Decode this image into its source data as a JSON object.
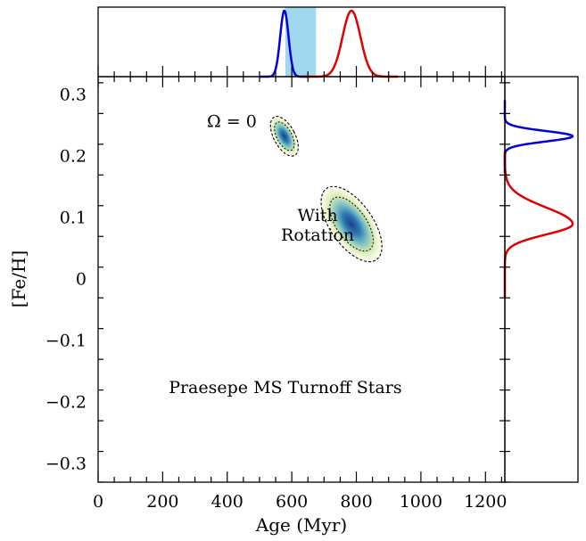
{
  "chart_data": {
    "type": "scatter",
    "title": "",
    "xlabel": "Age (Myr)",
    "ylabel": "[Fe/H]",
    "xlim": [
      0,
      1260
    ],
    "ylim": [
      -0.33,
      0.33
    ],
    "x_ticks": [
      0,
      200,
      400,
      600,
      800,
      1000,
      1200
    ],
    "y_ticks": [
      -0.3,
      -0.2,
      -0.1,
      0,
      0.1,
      0.2,
      0.3
    ],
    "x_tick_labels": [
      "0",
      "200",
      "400",
      "600",
      "800",
      "1000",
      "1200"
    ],
    "y_tick_labels": [
      "−0.3",
      "−0.2",
      "−0.1",
      "0",
      "0.1",
      "0.2",
      "0.3"
    ],
    "annotations": [
      {
        "text": "Ω = 0",
        "x": 420,
        "y": 0.248
      },
      {
        "text": "With",
        "x": 680,
        "y": 0.095
      },
      {
        "text": "Rotation",
        "x": 680,
        "y": 0.063
      },
      {
        "text": "Praesepe MS Turnoff Stars",
        "x": 580,
        "y": -0.185
      }
    ],
    "series": [
      {
        "key": "non-rotating",
        "color": "#0000dd",
        "center_age": 577,
        "center_feh": 0.233,
        "age_sigma": 13,
        "feh_sigma": 0.0085
      },
      {
        "key": "rotating",
        "color": "#e00000",
        "center_age": 785,
        "center_feh": 0.09,
        "age_sigma": 24,
        "feh_sigma": 0.017
      }
    ],
    "shaded_age_band": {
      "min": 580,
      "max": 675,
      "color": "#a2d8ef"
    }
  }
}
